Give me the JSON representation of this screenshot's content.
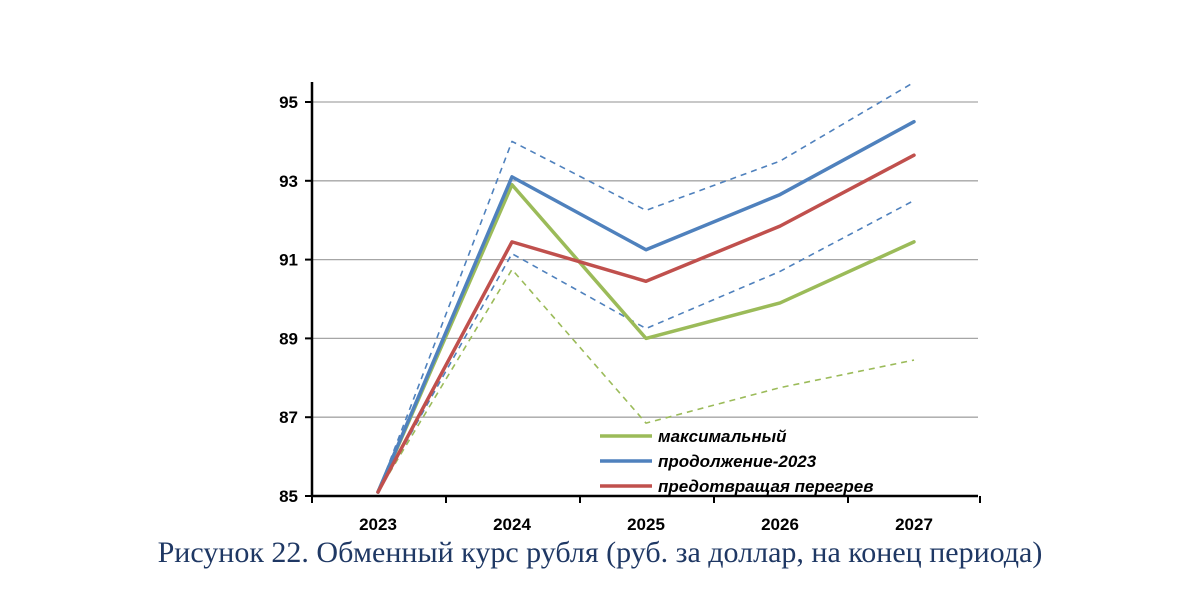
{
  "chart_data": {
    "type": "line",
    "x": [
      "2023",
      "2024",
      "2025",
      "2026",
      "2027"
    ],
    "yticks": [
      "85",
      "87",
      "89",
      "91",
      "93",
      "95"
    ],
    "ylim": [
      85,
      95.6
    ],
    "grid": true,
    "legend_position": "bottom-right",
    "series": [
      {
        "name": "максимальный",
        "color": "#9bbb59",
        "style": "solid",
        "in_legend": true,
        "values": [
          85.1,
          92.9,
          89.0,
          89.9,
          91.45
        ]
      },
      {
        "name": "продолжение-2023",
        "color": "#4f81bd",
        "style": "solid",
        "in_legend": true,
        "values": [
          85.1,
          93.1,
          91.25,
          92.65,
          94.5
        ]
      },
      {
        "name": "предотвращая перегрев",
        "color": "#c0504d",
        "style": "solid",
        "in_legend": true,
        "values": [
          85.1,
          91.45,
          90.45,
          91.85,
          93.65
        ]
      },
      {
        "color": "#4f81bd",
        "style": "dashed",
        "in_legend": false,
        "values": [
          85.1,
          94.0,
          92.25,
          93.5,
          95.5
        ]
      },
      {
        "color": "#4f81bd",
        "style": "dashed",
        "in_legend": false,
        "values": [
          85.1,
          91.15,
          89.25,
          90.7,
          92.5
        ]
      },
      {
        "color": "#9bbb59",
        "style": "dashed",
        "in_legend": false,
        "values": [
          85.1,
          90.75,
          86.85,
          87.75,
          88.45
        ]
      }
    ]
  },
  "caption": "Рисунок 22. Обменный курс рубля (руб. за доллар, на конец периода)"
}
